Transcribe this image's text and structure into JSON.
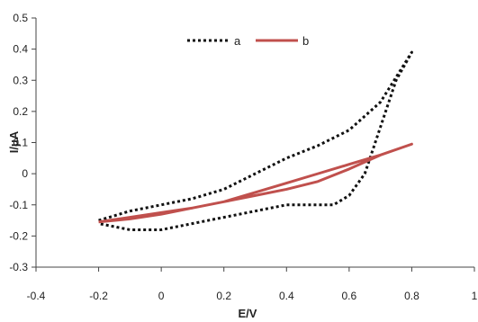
{
  "chart_data": {
    "type": "line",
    "title": "",
    "xlabel": "E/V",
    "ylabel": "I/μA",
    "xlim": [
      -0.4,
      1.0
    ],
    "ylim": [
      -0.3,
      0.5
    ],
    "x_ticks": [
      "-0.4",
      "-0.2",
      "0",
      "0.2",
      "0.4",
      "0.6",
      "0.8",
      "1"
    ],
    "y_ticks": [
      "0.5",
      "0.4",
      "0.3",
      "0.2",
      "0.1",
      "0",
      "-0.1",
      "-0.2",
      "-0.3"
    ],
    "grid": false,
    "legend_position": "top-center",
    "series": [
      {
        "name": "a",
        "style": "dotted",
        "color": "#111111",
        "x": [
          -0.2,
          -0.1,
          0.0,
          0.1,
          0.2,
          0.3,
          0.4,
          0.5,
          0.6,
          0.7,
          0.8,
          0.75,
          0.7,
          0.65,
          0.6,
          0.55,
          0.5,
          0.45,
          0.4,
          0.3,
          0.2,
          0.1,
          0.0,
          -0.1,
          -0.2
        ],
        "y": [
          -0.15,
          -0.12,
          -0.1,
          -0.08,
          -0.05,
          0.0,
          0.05,
          0.09,
          0.14,
          0.23,
          0.39,
          0.3,
          0.15,
          0.0,
          -0.07,
          -0.1,
          -0.1,
          -0.1,
          -0.1,
          -0.12,
          -0.14,
          -0.16,
          -0.18,
          -0.18,
          -0.16
        ]
      },
      {
        "name": "b",
        "style": "solid",
        "color": "#c0504d",
        "x": [
          -0.2,
          -0.1,
          0.0,
          0.1,
          0.2,
          0.3,
          0.4,
          0.5,
          0.6,
          0.7,
          0.8,
          0.7,
          0.6,
          0.5,
          0.4,
          0.3,
          0.2,
          0.1,
          0.0,
          -0.1,
          -0.2
        ],
        "y": [
          -0.155,
          -0.14,
          -0.125,
          -0.11,
          -0.09,
          -0.06,
          -0.03,
          0.0,
          0.03,
          0.06,
          0.095,
          0.06,
          0.015,
          -0.025,
          -0.05,
          -0.07,
          -0.09,
          -0.11,
          -0.13,
          -0.145,
          -0.155
        ]
      }
    ]
  }
}
